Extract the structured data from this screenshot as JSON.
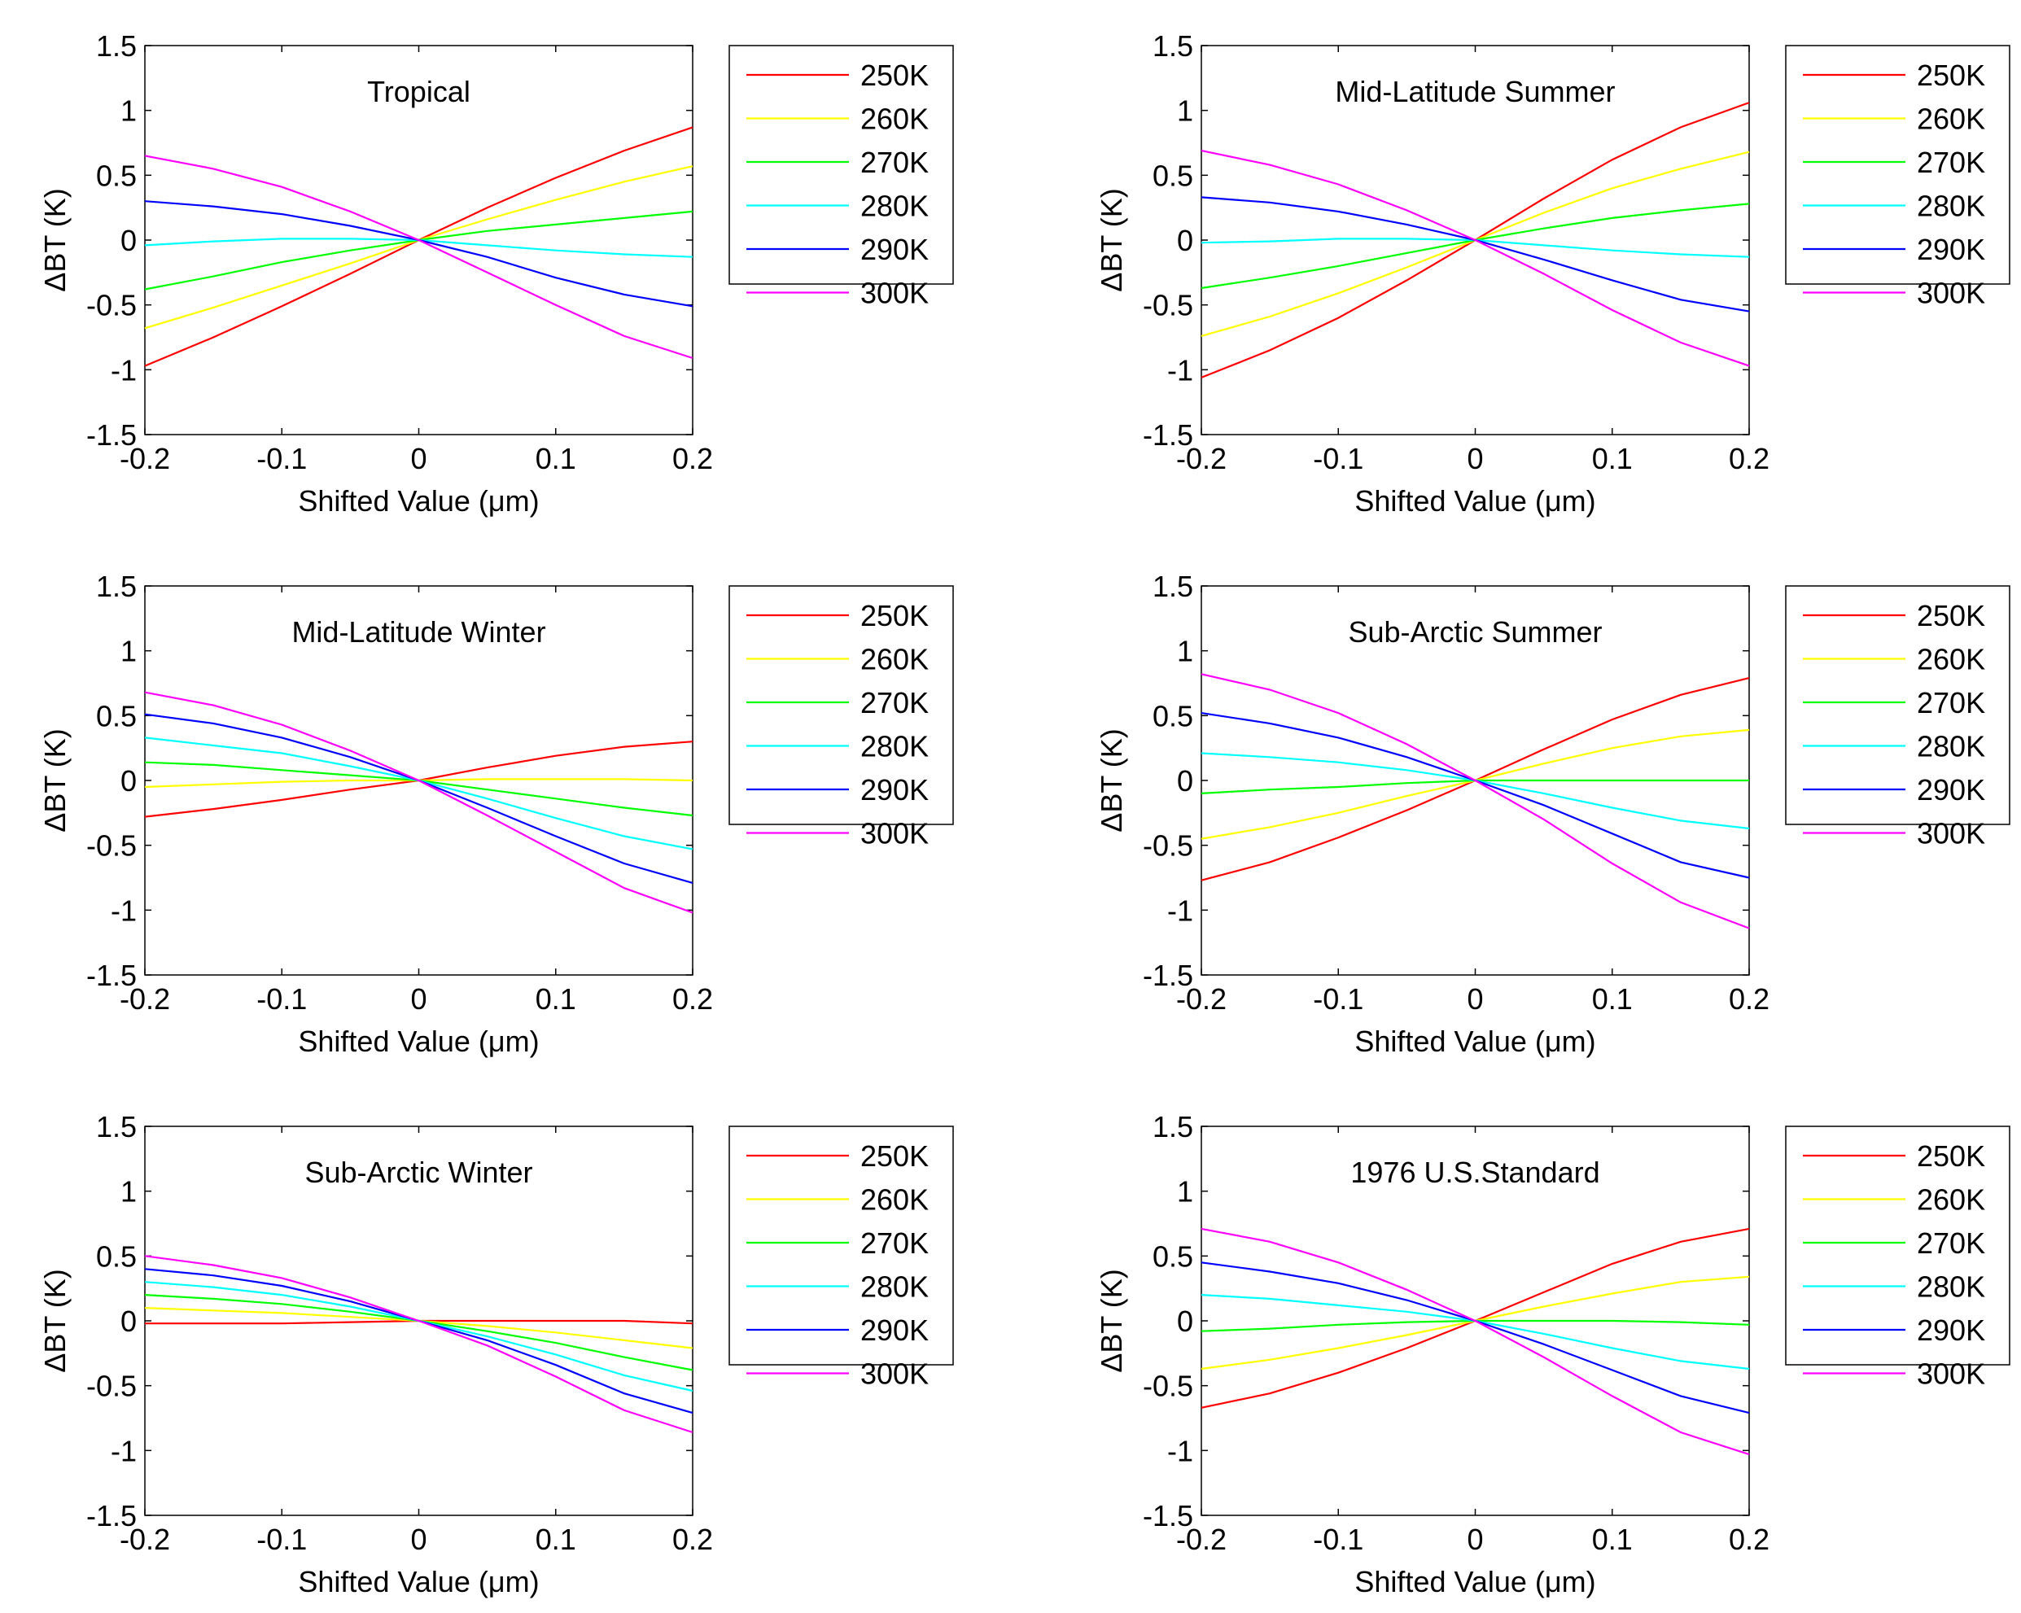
{
  "figure": {
    "xlabel": "Shifted Value (μm)",
    "ylabel": "ΔBT (K)",
    "legend_position": "outside-right"
  },
  "chart_data": [
    {
      "type": "line",
      "title": "Tropical",
      "xlabel": "Shifted Value (μm)",
      "ylabel": "ΔBT (K)",
      "xlim": [
        -0.2,
        0.2
      ],
      "ylim": [
        -1.5,
        1.5
      ],
      "x": [
        -0.2,
        -0.15,
        -0.1,
        -0.05,
        0,
        0.05,
        0.1,
        0.15,
        0.2
      ],
      "xticks": [
        "-0.2",
        "-0.1",
        "0",
        "0.1",
        "0.2"
      ],
      "yticks": [
        "-1.5",
        "-1",
        "-0.5",
        "0",
        "0.5",
        "1",
        "1.5"
      ],
      "series": [
        {
          "name": "250K",
          "color": "#ff0000",
          "values": [
            -0.97,
            -0.75,
            -0.51,
            -0.26,
            0,
            0.25,
            0.48,
            0.69,
            0.87
          ]
        },
        {
          "name": "260K",
          "color": "#ffff00",
          "values": [
            -0.68,
            -0.52,
            -0.35,
            -0.18,
            0,
            0.16,
            0.31,
            0.45,
            0.57
          ]
        },
        {
          "name": "270K",
          "color": "#00ff00",
          "values": [
            -0.38,
            -0.28,
            -0.17,
            -0.08,
            0,
            0.07,
            0.12,
            0.17,
            0.22
          ]
        },
        {
          "name": "280K",
          "color": "#00ffff",
          "values": [
            -0.04,
            -0.01,
            0.01,
            0.01,
            0,
            -0.04,
            -0.08,
            -0.11,
            -0.13
          ]
        },
        {
          "name": "290K",
          "color": "#0000ff",
          "values": [
            0.3,
            0.26,
            0.2,
            0.11,
            0,
            -0.13,
            -0.29,
            -0.42,
            -0.51
          ]
        },
        {
          "name": "300K",
          "color": "#ff00ff",
          "values": [
            0.65,
            0.55,
            0.41,
            0.22,
            0,
            -0.25,
            -0.5,
            -0.74,
            -0.91
          ]
        }
      ]
    },
    {
      "type": "line",
      "title": "Mid-Latitude Summer",
      "xlabel": "Shifted Value (μm)",
      "ylabel": "ΔBT (K)",
      "xlim": [
        -0.2,
        0.2
      ],
      "ylim": [
        -1.5,
        1.5
      ],
      "x": [
        -0.2,
        -0.15,
        -0.1,
        -0.05,
        0,
        0.05,
        0.1,
        0.15,
        0.2
      ],
      "xticks": [
        "-0.2",
        "-0.1",
        "0",
        "0.1",
        "0.2"
      ],
      "yticks": [
        "-1.5",
        "-1",
        "-0.5",
        "0",
        "0.5",
        "1",
        "1.5"
      ],
      "series": [
        {
          "name": "250K",
          "color": "#ff0000",
          "values": [
            -1.06,
            -0.85,
            -0.6,
            -0.31,
            0,
            0.32,
            0.62,
            0.87,
            1.06
          ]
        },
        {
          "name": "260K",
          "color": "#ffff00",
          "values": [
            -0.74,
            -0.59,
            -0.41,
            -0.21,
            0,
            0.21,
            0.4,
            0.55,
            0.68
          ]
        },
        {
          "name": "270K",
          "color": "#00ff00",
          "values": [
            -0.37,
            -0.29,
            -0.2,
            -0.1,
            0,
            0.09,
            0.17,
            0.23,
            0.28
          ]
        },
        {
          "name": "280K",
          "color": "#00ffff",
          "values": [
            -0.02,
            -0.01,
            0.01,
            0.01,
            0,
            -0.04,
            -0.08,
            -0.11,
            -0.13
          ]
        },
        {
          "name": "290K",
          "color": "#0000ff",
          "values": [
            0.33,
            0.29,
            0.22,
            0.12,
            0,
            -0.15,
            -0.31,
            -0.46,
            -0.55
          ]
        },
        {
          "name": "300K",
          "color": "#ff00ff",
          "values": [
            0.69,
            0.58,
            0.43,
            0.23,
            0,
            -0.26,
            -0.54,
            -0.79,
            -0.97
          ]
        }
      ]
    },
    {
      "type": "line",
      "title": "Mid-Latitude Winter",
      "xlabel": "Shifted Value (μm)",
      "ylabel": "ΔBT (K)",
      "xlim": [
        -0.2,
        0.2
      ],
      "ylim": [
        -1.5,
        1.5
      ],
      "x": [
        -0.2,
        -0.15,
        -0.1,
        -0.05,
        0,
        0.05,
        0.1,
        0.15,
        0.2
      ],
      "xticks": [
        "-0.2",
        "-0.1",
        "0",
        "0.1",
        "0.2"
      ],
      "yticks": [
        "-1.5",
        "-1",
        "-0.5",
        "0",
        "0.5",
        "1",
        "1.5"
      ],
      "series": [
        {
          "name": "250K",
          "color": "#ff0000",
          "values": [
            -0.28,
            -0.22,
            -0.15,
            -0.07,
            0,
            0.1,
            0.19,
            0.26,
            0.3
          ]
        },
        {
          "name": "260K",
          "color": "#ffff00",
          "values": [
            -0.05,
            -0.03,
            -0.01,
            0,
            0,
            0.01,
            0.01,
            0.01,
            0
          ]
        },
        {
          "name": "270K",
          "color": "#00ff00",
          "values": [
            0.14,
            0.12,
            0.08,
            0.04,
            0,
            -0.07,
            -0.14,
            -0.21,
            -0.27
          ]
        },
        {
          "name": "280K",
          "color": "#00ffff",
          "values": [
            0.33,
            0.27,
            0.21,
            0.11,
            0,
            -0.14,
            -0.29,
            -0.43,
            -0.53
          ]
        },
        {
          "name": "290K",
          "color": "#0000ff",
          "values": [
            0.51,
            0.44,
            0.33,
            0.18,
            0,
            -0.21,
            -0.43,
            -0.64,
            -0.79
          ]
        },
        {
          "name": "300K",
          "color": "#ff00ff",
          "values": [
            0.68,
            0.58,
            0.43,
            0.23,
            0,
            -0.27,
            -0.55,
            -0.83,
            -1.02
          ]
        }
      ]
    },
    {
      "type": "line",
      "title": "Sub-Arctic Summer",
      "xlabel": "Shifted Value (μm)",
      "ylabel": "ΔBT (K)",
      "xlim": [
        -0.2,
        0.2
      ],
      "ylim": [
        -1.5,
        1.5
      ],
      "x": [
        -0.2,
        -0.15,
        -0.1,
        -0.05,
        0,
        0.05,
        0.1,
        0.15,
        0.2
      ],
      "xticks": [
        "-0.2",
        "-0.1",
        "0",
        "0.1",
        "0.2"
      ],
      "yticks": [
        "-1.5",
        "-1",
        "-0.5",
        "0",
        "0.5",
        "1",
        "1.5"
      ],
      "series": [
        {
          "name": "250K",
          "color": "#ff0000",
          "values": [
            -0.77,
            -0.63,
            -0.44,
            -0.23,
            0,
            0.24,
            0.47,
            0.66,
            0.79
          ]
        },
        {
          "name": "260K",
          "color": "#ffff00",
          "values": [
            -0.45,
            -0.36,
            -0.25,
            -0.12,
            0,
            0.13,
            0.25,
            0.34,
            0.39
          ]
        },
        {
          "name": "270K",
          "color": "#00ff00",
          "values": [
            -0.1,
            -0.07,
            -0.05,
            -0.02,
            0,
            0,
            0,
            0,
            0
          ]
        },
        {
          "name": "280K",
          "color": "#00ffff",
          "values": [
            0.21,
            0.18,
            0.14,
            0.08,
            0,
            -0.1,
            -0.21,
            -0.31,
            -0.37
          ]
        },
        {
          "name": "290K",
          "color": "#0000ff",
          "values": [
            0.52,
            0.44,
            0.33,
            0.18,
            0,
            -0.19,
            -0.41,
            -0.63,
            -0.75
          ]
        },
        {
          "name": "300K",
          "color": "#ff00ff",
          "values": [
            0.82,
            0.7,
            0.52,
            0.28,
            0,
            -0.3,
            -0.64,
            -0.94,
            -1.14
          ]
        }
      ]
    },
    {
      "type": "line",
      "title": "Sub-Arctic Winter",
      "xlabel": "Shifted Value (μm)",
      "ylabel": "ΔBT (K)",
      "xlim": [
        -0.2,
        0.2
      ],
      "ylim": [
        -1.5,
        1.5
      ],
      "x": [
        -0.2,
        -0.15,
        -0.1,
        -0.05,
        0,
        0.05,
        0.1,
        0.15,
        0.2
      ],
      "xticks": [
        "-0.2",
        "-0.1",
        "0",
        "0.1",
        "0.2"
      ],
      "yticks": [
        "-1.5",
        "-1",
        "-0.5",
        "0",
        "0.5",
        "1",
        "1.5"
      ],
      "series": [
        {
          "name": "250K",
          "color": "#ff0000",
          "values": [
            -0.02,
            -0.02,
            -0.02,
            -0.01,
            0,
            0,
            0,
            0,
            -0.02
          ]
        },
        {
          "name": "260K",
          "color": "#ffff00",
          "values": [
            0.1,
            0.08,
            0.06,
            0.03,
            0,
            -0.04,
            -0.09,
            -0.15,
            -0.21
          ]
        },
        {
          "name": "270K",
          "color": "#00ff00",
          "values": [
            0.2,
            0.17,
            0.13,
            0.07,
            0,
            -0.08,
            -0.17,
            -0.28,
            -0.38
          ]
        },
        {
          "name": "280K",
          "color": "#00ffff",
          "values": [
            0.3,
            0.26,
            0.2,
            0.11,
            0,
            -0.12,
            -0.26,
            -0.42,
            -0.54
          ]
        },
        {
          "name": "290K",
          "color": "#0000ff",
          "values": [
            0.4,
            0.35,
            0.27,
            0.15,
            0,
            -0.15,
            -0.34,
            -0.56,
            -0.71
          ]
        },
        {
          "name": "300K",
          "color": "#ff00ff",
          "values": [
            0.5,
            0.43,
            0.33,
            0.18,
            0,
            -0.19,
            -0.43,
            -0.69,
            -0.86
          ]
        }
      ]
    },
    {
      "type": "line",
      "title": "1976 U.S.Standard",
      "xlabel": "Shifted Value (μm)",
      "ylabel": "ΔBT (K)",
      "xlim": [
        -0.2,
        0.2
      ],
      "ylim": [
        -1.5,
        1.5
      ],
      "x": [
        -0.2,
        -0.15,
        -0.1,
        -0.05,
        0,
        0.05,
        0.1,
        0.15,
        0.2
      ],
      "xticks": [
        "-0.2",
        "-0.1",
        "0",
        "0.1",
        "0.2"
      ],
      "yticks": [
        "-1.5",
        "-1",
        "-0.5",
        "0",
        "0.5",
        "1",
        "1.5"
      ],
      "series": [
        {
          "name": "250K",
          "color": "#ff0000",
          "values": [
            -0.67,
            -0.56,
            -0.4,
            -0.21,
            0,
            0.22,
            0.44,
            0.61,
            0.71
          ]
        },
        {
          "name": "260K",
          "color": "#ffff00",
          "values": [
            -0.37,
            -0.3,
            -0.21,
            -0.11,
            0,
            0.11,
            0.21,
            0.3,
            0.34
          ]
        },
        {
          "name": "270K",
          "color": "#00ff00",
          "values": [
            -0.08,
            -0.06,
            -0.03,
            -0.01,
            0,
            0,
            0,
            -0.01,
            -0.03
          ]
        },
        {
          "name": "280K",
          "color": "#00ffff",
          "values": [
            0.2,
            0.17,
            0.12,
            0.07,
            0,
            -0.1,
            -0.21,
            -0.31,
            -0.37
          ]
        },
        {
          "name": "290K",
          "color": "#0000ff",
          "values": [
            0.45,
            0.38,
            0.29,
            0.16,
            0,
            -0.18,
            -0.38,
            -0.58,
            -0.71
          ]
        },
        {
          "name": "300K",
          "color": "#ff00ff",
          "values": [
            0.71,
            0.61,
            0.45,
            0.24,
            0,
            -0.28,
            -0.58,
            -0.86,
            -1.03
          ]
        }
      ]
    }
  ]
}
